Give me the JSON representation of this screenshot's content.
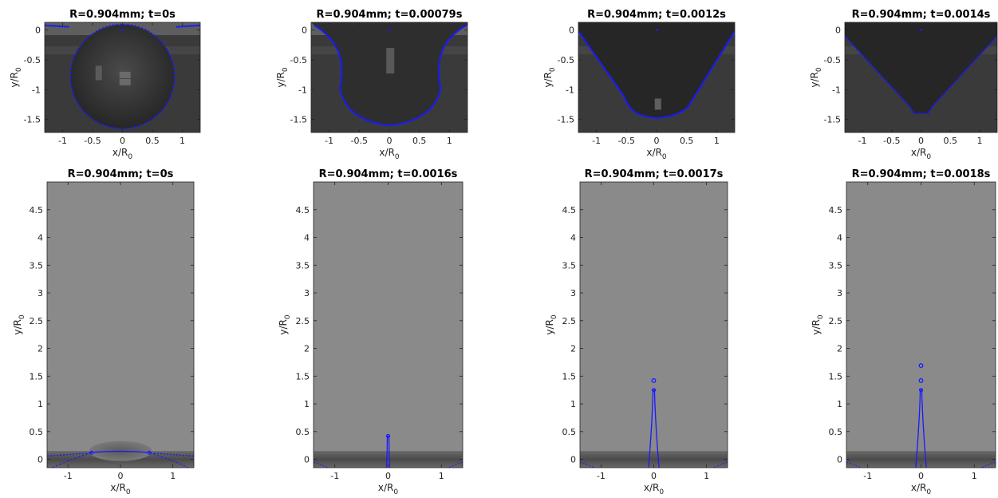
{
  "figure": {
    "panels": [
      {
        "title": "R=0.904mm; t=0s",
        "xlabel": "x/R",
        "xlabel_sub": "0",
        "ylabel": "y/R",
        "ylabel_sub": "0",
        "xlim": [
          -1.3,
          1.3
        ],
        "ylim": [
          -1.72,
          0.13
        ],
        "xticks": [
          "-1",
          "-0.5",
          "0",
          "0.5",
          "1"
        ],
        "xtick_values": [
          -1,
          -0.5,
          0,
          0.5,
          1
        ],
        "yticks": [
          "0",
          "-0.5",
          "-1",
          "-1.5"
        ],
        "ytick_values": [
          0,
          -0.5,
          -1,
          -1.5
        ],
        "shape": "sphere",
        "background": "#3a3a3a"
      },
      {
        "title": "R=0.904mm; t=0.00079s",
        "xlabel": "x/R",
        "xlabel_sub": "0",
        "ylabel": "y/R",
        "ylabel_sub": "0",
        "xlim": [
          -1.3,
          1.3
        ],
        "ylim": [
          -1.72,
          0.13
        ],
        "xticks": [
          "-1",
          "-0.5",
          "0",
          "0.5",
          "1"
        ],
        "xtick_values": [
          -1,
          -0.5,
          0,
          0.5,
          1
        ],
        "yticks": [
          "0",
          "-0.5",
          "-1",
          "-1.5"
        ],
        "ytick_values": [
          0,
          -0.5,
          -1,
          -1.5
        ],
        "shape": "bowl",
        "background": "#3a3a3a"
      },
      {
        "title": "R=0.904mm; t=0.0012s",
        "xlabel": "x/R",
        "xlabel_sub": "0",
        "ylabel": "y/R",
        "ylabel_sub": "0",
        "xlim": [
          -1.3,
          1.3
        ],
        "ylim": [
          -1.72,
          0.13
        ],
        "xticks": [
          "-1",
          "-0.5",
          "0",
          "0.5",
          "1"
        ],
        "xtick_values": [
          -1,
          -0.5,
          0,
          0.5,
          1
        ],
        "yticks": [
          "0",
          "-0.5",
          "-1",
          "-1.5"
        ],
        "ytick_values": [
          0,
          -0.5,
          -1,
          -1.5
        ],
        "shape": "vcone",
        "background": "#3a3a3a"
      },
      {
        "title": "R=0.904mm; t=0.0014s",
        "xlabel": "x/R",
        "xlabel_sub": "0",
        "ylabel": "y/R",
        "ylabel_sub": "0",
        "xlim": [
          -1.3,
          1.3
        ],
        "ylim": [
          -1.72,
          0.13
        ],
        "xticks": [
          "-1",
          "-0.5",
          "0",
          "0.5",
          "1"
        ],
        "xtick_values": [
          -1,
          -0.5,
          0,
          0.5,
          1
        ],
        "yticks": [
          "0",
          "-0.5",
          "-1",
          "-1.5"
        ],
        "ytick_values": [
          0,
          -0.5,
          -1,
          -1.5
        ],
        "shape": "sharpcone",
        "background": "#3a3a3a"
      },
      {
        "title": "R=0.904mm; t=0s",
        "xlabel": "x/R",
        "xlabel_sub": "0",
        "ylabel": "y/R",
        "ylabel_sub": "0",
        "xlim": [
          -1.4,
          1.4
        ],
        "ylim": [
          -0.15,
          5.0
        ],
        "xticks": [
          "-1",
          "0",
          "1"
        ],
        "xtick_values": [
          -1,
          0,
          1
        ],
        "yticks": [
          "0",
          "0.5",
          "1",
          "1.5",
          "2",
          "2.5",
          "3",
          "3.5",
          "4",
          "4.5"
        ],
        "ytick_values": [
          0,
          0.5,
          1,
          1.5,
          2,
          2.5,
          3,
          3.5,
          4,
          4.5
        ],
        "shape": "cap",
        "background": "#8a8a8a"
      },
      {
        "title": "R=0.904mm; t=0.0016s",
        "xlabel": "x/R",
        "xlabel_sub": "0",
        "ylabel": "y/R",
        "ylabel_sub": "0",
        "xlim": [
          -1.4,
          1.4
        ],
        "ylim": [
          -0.15,
          5.0
        ],
        "xticks": [
          "-1",
          "0",
          "1"
        ],
        "xtick_values": [
          -1,
          0,
          1
        ],
        "yticks": [
          "0",
          "0.5",
          "1",
          "1.5",
          "2",
          "2.5",
          "3",
          "3.5",
          "4",
          "4.5"
        ],
        "ytick_values": [
          0,
          0.5,
          1,
          1.5,
          2,
          2.5,
          3,
          3.5,
          4,
          4.5
        ],
        "shape": "jet",
        "jet_top": 0.42,
        "drops": [],
        "background": "#8a8a8a"
      },
      {
        "title": "R=0.904mm; t=0.0017s",
        "xlabel": "x/R",
        "xlabel_sub": "0",
        "ylabel": "y/R",
        "ylabel_sub": "0",
        "xlim": [
          -1.4,
          1.4
        ],
        "ylim": [
          -0.15,
          5.0
        ],
        "xticks": [
          "-1",
          "0",
          "1"
        ],
        "xtick_values": [
          -1,
          0,
          1
        ],
        "yticks": [
          "0",
          "0.5",
          "1",
          "1.5",
          "2",
          "2.5",
          "3",
          "3.5",
          "4",
          "4.5"
        ],
        "ytick_values": [
          0,
          0.5,
          1,
          1.5,
          2,
          2.5,
          3,
          3.5,
          4,
          4.5
        ],
        "shape": "jet",
        "jet_top": 1.25,
        "drops": [
          1.42
        ],
        "background": "#8a8a8a"
      },
      {
        "title": "R=0.904mm; t=0.0018s",
        "xlabel": "x/R",
        "xlabel_sub": "0",
        "ylabel": "y/R",
        "ylabel_sub": "0",
        "xlim": [
          -1.4,
          1.4
        ],
        "ylim": [
          -0.15,
          5.0
        ],
        "xticks": [
          "-1",
          "0",
          "1"
        ],
        "xtick_values": [
          -1,
          0,
          1
        ],
        "yticks": [
          "0",
          "0.5",
          "1",
          "1.5",
          "2",
          "2.5",
          "3",
          "3.5",
          "4",
          "4.5"
        ],
        "ytick_values": [
          0,
          0.5,
          1,
          1.5,
          2,
          2.5,
          3,
          3.5,
          4,
          4.5
        ],
        "shape": "jet",
        "jet_top": 1.25,
        "drops": [
          1.42,
          1.69
        ],
        "background": "#8a8a8a"
      }
    ]
  },
  "chart_data": [
    {
      "type": "scatter",
      "title": "R=0.904mm; t=0s",
      "xlabel": "x/R0",
      "ylabel": "y/R0",
      "xlim": [
        -1.3,
        1.3
      ],
      "ylim": [
        -1.72,
        0.13
      ],
      "series": [
        {
          "values": []
        }
      ]
    },
    {
      "type": "scatter",
      "title": "R=0.904mm; t=0.00079s",
      "xlabel": "x/R0",
      "ylabel": "y/R0",
      "xlim": [
        -1.3,
        1.3
      ],
      "ylim": [
        -1.72,
        0.13
      ],
      "series": [
        {
          "values": []
        }
      ]
    },
    {
      "type": "scatter",
      "title": "R=0.904mm; t=0.0012s",
      "xlabel": "x/R0",
      "ylabel": "y/R0",
      "xlim": [
        -1.3,
        1.3
      ],
      "ylim": [
        -1.72,
        0.13
      ],
      "series": [
        {
          "values": []
        }
      ]
    },
    {
      "type": "scatter",
      "title": "R=0.904mm; t=0.0014s",
      "xlabel": "x/R0",
      "ylabel": "y/R0",
      "xlim": [
        -1.3,
        1.3
      ],
      "ylim": [
        -1.72,
        0.13
      ],
      "series": [
        {
          "values": []
        }
      ]
    },
    {
      "type": "line",
      "title": "R=0.904mm; t=0s",
      "xlabel": "x/R0",
      "ylabel": "y/R0",
      "xlim": [
        -1.4,
        1.4
      ],
      "ylim": [
        -0.15,
        5.0
      ],
      "series": [
        {
          "values": []
        }
      ]
    },
    {
      "type": "line",
      "title": "R=0.904mm; t=0.0016s",
      "xlabel": "x/R0",
      "ylabel": "y/R0",
      "xlim": [
        -1.4,
        1.4
      ],
      "ylim": [
        -0.15,
        5.0
      ],
      "series": [
        {
          "values": []
        }
      ]
    },
    {
      "type": "line",
      "title": "R=0.904mm; t=0.0017s",
      "xlabel": "x/R0",
      "ylabel": "y/R0",
      "xlim": [
        -1.4,
        1.4
      ],
      "ylim": [
        -0.15,
        5.0
      ],
      "series": [
        {
          "values": []
        }
      ]
    },
    {
      "type": "line",
      "title": "R=0.904mm; t=0.0018s",
      "xlabel": "x/R0",
      "ylabel": "y/R0",
      "xlim": [
        -1.4,
        1.4
      ],
      "ylim": [
        -0.15,
        5.0
      ],
      "series": [
        {
          "values": []
        }
      ]
    }
  ]
}
